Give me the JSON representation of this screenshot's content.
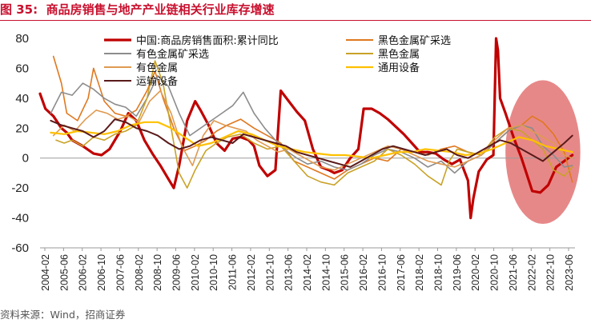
{
  "figure": {
    "label": "图 35:",
    "title": "商品房销售与地产产业链相关行业库存增速",
    "source": "资料来源：Wind，招商证券"
  },
  "chart_data": {
    "type": "line",
    "ylim": [
      -60,
      80
    ],
    "yticks": [
      80,
      60,
      40,
      20,
      0,
      -20,
      -40,
      -60
    ],
    "xlim": [
      2004.0,
      2024.0
    ],
    "xticks": [
      "2004-02",
      "2005-06",
      "2006-02",
      "2006-10",
      "2007-06",
      "2008-02",
      "2008-10",
      "2009-06",
      "2010-02",
      "2010-10",
      "2011-06",
      "2012-02",
      "2012-10",
      "2013-06",
      "2014-02",
      "2014-10",
      "2015-06",
      "2016-02",
      "2016-10",
      "2017-06",
      "2018-02",
      "2018-10",
      "2019-06",
      "2020-02",
      "2020-10",
      "2021-06",
      "2022-02",
      "2022-10",
      "2023-06"
    ],
    "annotation": {
      "type": "ellipse",
      "note": "highlight of 2022-2023 period",
      "center_x": 2022.8,
      "center_y": 4,
      "rx_years": 1.4,
      "ry_units": 48
    },
    "series": [
      {
        "name": "中国:商品房销售面积:累计同比",
        "color": "#c00000",
        "width": 3.2,
        "x": [
          2004.0,
          2004.2,
          2004.5,
          2004.8,
          2005.0,
          2005.2,
          2005.6,
          2006.0,
          2006.3,
          2006.6,
          2007.0,
          2007.3,
          2007.6,
          2007.9,
          2008.2,
          2008.5,
          2008.8,
          2009.0,
          2009.2,
          2009.5,
          2009.8,
          2010.0,
          2010.3,
          2010.6,
          2010.9,
          2011.2,
          2011.5,
          2011.8,
          2012.0,
          2012.2,
          2012.5,
          2012.8,
          2013.0,
          2013.3,
          2013.6,
          2013.9,
          2014.2,
          2014.5,
          2014.8,
          2015.0,
          2015.3,
          2015.6,
          2015.9,
          2016.1,
          2016.4,
          2016.7,
          2017.0,
          2017.3,
          2017.6,
          2017.9,
          2018.2,
          2018.5,
          2018.8,
          2019.1,
          2019.4,
          2019.7,
          2020.0,
          2020.1,
          2020.2,
          2020.4,
          2020.7,
          2020.95,
          2021.05,
          2021.12,
          2021.2,
          2021.4,
          2021.7,
          2022.0,
          2022.2,
          2022.4,
          2022.7,
          2023.0,
          2023.3,
          2023.6,
          2023.9
        ],
        "y": [
          43,
          33,
          28,
          20,
          17,
          12,
          8,
          3,
          2,
          6,
          18,
          30,
          25,
          12,
          3,
          -5,
          -14,
          -20,
          -5,
          25,
          38,
          32,
          22,
          10,
          5,
          13,
          14,
          12,
          8,
          -5,
          -12,
          -8,
          45,
          38,
          31,
          25,
          6,
          -6,
          -8,
          -10,
          -8,
          0,
          6,
          33,
          33,
          30,
          26,
          21,
          16,
          10,
          4,
          4,
          3,
          -1,
          -4,
          -1,
          -15,
          -40,
          -27,
          -9,
          -1,
          2,
          80,
          72,
          40,
          30,
          14,
          0,
          -11,
          -22,
          -23,
          -18,
          -6,
          -2,
          2
        ]
      },
      {
        "name": "黑色金属矿采选",
        "color": "#e0781f",
        "width": 1.6,
        "x": [
          2004.5,
          2004.8,
          2005.0,
          2005.4,
          2005.8,
          2006.0,
          2006.4,
          2006.8,
          2007.2,
          2007.6,
          2008.0,
          2008.3,
          2008.6,
          2009.0,
          2009.4,
          2009.8,
          2010.2,
          2010.6,
          2011.0,
          2011.5,
          2012.0,
          2012.5,
          2013.0,
          2013.5,
          2014.0,
          2014.5,
          2015.0,
          2015.5,
          2016.0,
          2016.5,
          2017.0,
          2017.5,
          2018.0,
          2018.5,
          2019.0,
          2019.5,
          2020.0,
          2020.5,
          2021.0,
          2021.5,
          2022.0,
          2022.4,
          2022.8,
          2023.2,
          2023.6,
          2023.9
        ],
        "y": [
          68,
          50,
          30,
          25,
          40,
          60,
          38,
          30,
          28,
          32,
          45,
          58,
          40,
          20,
          5,
          8,
          12,
          18,
          22,
          26,
          20,
          15,
          10,
          -2,
          -6,
          -10,
          -14,
          -8,
          -4,
          0,
          -2,
          6,
          4,
          2,
          6,
          8,
          4,
          2,
          10,
          18,
          22,
          28,
          24,
          16,
          4,
          -16
        ]
      },
      {
        "name": "有色金属矿采选",
        "color": "#8c8c8c",
        "width": 1.6,
        "x": [
          2004.4,
          2004.8,
          2005.2,
          2005.6,
          2006.0,
          2006.4,
          2006.8,
          2007.2,
          2007.6,
          2008.0,
          2008.4,
          2008.8,
          2009.2,
          2009.6,
          2010.0,
          2010.4,
          2010.8,
          2011.2,
          2011.6,
          2012.0,
          2012.4,
          2012.8,
          2013.2,
          2013.6,
          2014.0,
          2014.5,
          2015.0,
          2015.5,
          2016.0,
          2016.5,
          2017.0,
          2017.5,
          2018.0,
          2018.5,
          2019.0,
          2019.5,
          2020.0,
          2020.5,
          2021.0,
          2021.5,
          2022.0,
          2022.4,
          2022.8,
          2023.2,
          2023.6,
          2023.9
        ],
        "y": [
          30,
          44,
          42,
          50,
          46,
          40,
          36,
          34,
          28,
          40,
          55,
          48,
          30,
          15,
          20,
          25,
          30,
          35,
          44,
          30,
          20,
          12,
          5,
          0,
          -4,
          -2,
          -6,
          -8,
          -4,
          2,
          6,
          4,
          0,
          -6,
          -2,
          -10,
          -2,
          2,
          10,
          18,
          22,
          20,
          8,
          2,
          -6,
          -5
        ]
      },
      {
        "name": "黑色金属",
        "color": "#c9a227",
        "width": 1.6,
        "x": [
          2004.6,
          2004.9,
          2005.2,
          2005.6,
          2006.0,
          2006.4,
          2006.8,
          2007.2,
          2007.6,
          2008.0,
          2008.3,
          2008.6,
          2008.9,
          2009.2,
          2009.5,
          2009.8,
          2010.2,
          2010.6,
          2011.0,
          2011.5,
          2012.0,
          2012.5,
          2013.0,
          2013.5,
          2014.0,
          2014.5,
          2015.0,
          2015.5,
          2016.0,
          2016.5,
          2017.0,
          2017.5,
          2018.0,
          2018.5,
          2019.0,
          2019.3,
          2019.6,
          2020.0,
          2020.5,
          2021.0,
          2021.5,
          2022.0,
          2022.4,
          2022.8,
          2023.2,
          2023.6,
          2023.9
        ],
        "y": [
          12,
          10,
          12,
          8,
          14,
          12,
          16,
          18,
          22,
          40,
          65,
          50,
          20,
          -10,
          -20,
          -8,
          5,
          10,
          14,
          16,
          10,
          6,
          8,
          -2,
          -12,
          -16,
          -18,
          -10,
          -6,
          -2,
          6,
          2,
          -4,
          -12,
          -18,
          -2,
          6,
          4,
          2,
          14,
          20,
          18,
          12,
          6,
          -8,
          -12,
          -6
        ]
      },
      {
        "name": "有色金属",
        "color": "#e09a50",
        "width": 1.6,
        "x": [
          2004.5,
          2004.9,
          2005.3,
          2005.7,
          2006.1,
          2006.5,
          2006.9,
          2007.3,
          2007.7,
          2008.1,
          2008.5,
          2008.9,
          2009.3,
          2009.7,
          2010.1,
          2010.5,
          2010.9,
          2011.3,
          2011.7,
          2012.1,
          2012.5,
          2012.9,
          2013.3,
          2013.7,
          2014.1,
          2014.5,
          2015.0,
          2015.5,
          2016.0,
          2016.5,
          2017.0,
          2017.5,
          2018.0,
          2018.5,
          2019.0,
          2019.5,
          2020.0,
          2020.5,
          2021.0,
          2021.5,
          2022.0,
          2022.4,
          2022.8,
          2023.2,
          2023.6,
          2023.9
        ],
        "y": [
          15,
          22,
          18,
          26,
          32,
          30,
          26,
          28,
          24,
          38,
          45,
          30,
          8,
          -5,
          15,
          25,
          22,
          20,
          18,
          12,
          8,
          4,
          6,
          2,
          -2,
          -6,
          -8,
          -4,
          0,
          4,
          8,
          6,
          2,
          -2,
          -4,
          -6,
          -2,
          2,
          12,
          20,
          22,
          18,
          14,
          10,
          2,
          0
        ]
      },
      {
        "name": "通用设备",
        "color": "#ffc000",
        "width": 2.2,
        "x": [
          2004.4,
          2004.9,
          2005.4,
          2005.9,
          2006.4,
          2006.9,
          2007.4,
          2007.9,
          2008.4,
          2008.9,
          2009.4,
          2009.9,
          2010.4,
          2010.9,
          2011.4,
          2011.9,
          2012.4,
          2012.9,
          2013.4,
          2013.9,
          2014.4,
          2014.9,
          2015.4,
          2015.9,
          2016.4,
          2016.9,
          2017.4,
          2017.9,
          2018.4,
          2018.9,
          2019.4,
          2019.9,
          2020.4,
          2020.9,
          2021.4,
          2021.9,
          2022.4,
          2022.9,
          2023.4,
          2023.9
        ],
        "y": [
          17,
          16,
          18,
          17,
          16,
          18,
          22,
          24,
          24,
          20,
          14,
          8,
          10,
          14,
          18,
          16,
          12,
          8,
          6,
          4,
          3,
          2,
          2,
          1,
          0,
          2,
          4,
          4,
          6,
          5,
          4,
          2,
          3,
          6,
          10,
          14,
          12,
          8,
          6,
          4
        ]
      },
      {
        "name": "运输设备",
        "color": "#5a1a1a",
        "width": 2.0,
        "x": [
          2004.4,
          2004.8,
          2005.2,
          2005.6,
          2006.0,
          2006.4,
          2006.8,
          2007.2,
          2007.6,
          2008.0,
          2008.4,
          2008.8,
          2009.2,
          2009.6,
          2010.0,
          2010.4,
          2010.8,
          2011.2,
          2011.6,
          2012.0,
          2012.4,
          2012.8,
          2013.2,
          2013.6,
          2014.0,
          2014.4,
          2014.8,
          2015.2,
          2015.6,
          2016.0,
          2016.4,
          2016.8,
          2017.2,
          2017.6,
          2018.0,
          2018.4,
          2018.8,
          2019.2,
          2019.6,
          2020.0,
          2020.4,
          2020.8,
          2021.2,
          2021.6,
          2022.0,
          2022.4,
          2022.8,
          2023.2,
          2023.6,
          2023.9
        ],
        "y": [
          25,
          22,
          20,
          18,
          14,
          18,
          26,
          24,
          20,
          18,
          15,
          10,
          6,
          8,
          12,
          14,
          12,
          10,
          16,
          14,
          12,
          10,
          8,
          4,
          2,
          0,
          -2,
          -4,
          -6,
          -2,
          2,
          6,
          8,
          6,
          4,
          2,
          4,
          6,
          2,
          0,
          4,
          8,
          12,
          10,
          6,
          2,
          -2,
          4,
          10,
          15
        ]
      }
    ]
  }
}
